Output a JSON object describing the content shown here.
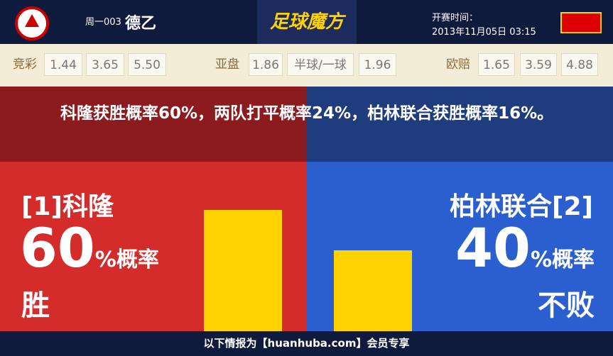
{
  "header": {
    "match_no": "周一003",
    "league": "德乙",
    "logo_text": "足球魔方",
    "time_label": "开赛时间：",
    "time": "2013年11月05日 03:15"
  },
  "odds": [
    {
      "label": "竞彩",
      "values": [
        "1.44",
        "3.65",
        "5.50"
      ]
    },
    {
      "label": "亚盘",
      "values": [
        "1.86",
        "半球/一球",
        "1.96"
      ]
    },
    {
      "label": "欧赔",
      "values": [
        "1.65",
        "3.59",
        "4.88"
      ]
    }
  ],
  "summary": "科隆获胜概率60%，两队打平概率24%，柏林联合获胜概率16%。",
  "home": {
    "name": "[1]科隆",
    "value": 60,
    "unit": "%概率",
    "outcome": "胜"
  },
  "away": {
    "name": "柏林联合[2]",
    "value": 40,
    "unit": "%概率",
    "outcome": "不败"
  },
  "footer": "以下情报为【huanhuba.com】会员专享"
}
